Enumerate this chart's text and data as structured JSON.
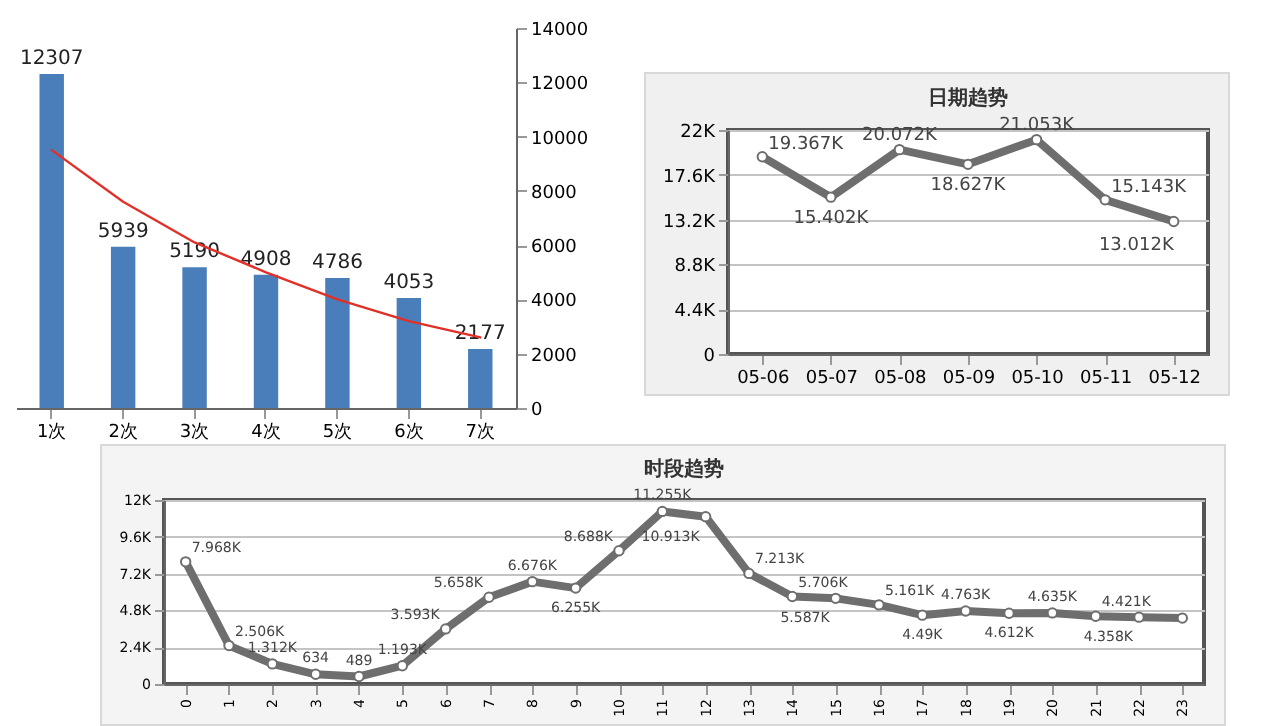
{
  "chart_data": [
    {
      "type": "bar",
      "categories": [
        "1次",
        "2次",
        "3次",
        "4次",
        "5次",
        "6次",
        "7次"
      ],
      "series": [
        {
          "color": "#4a7ebb",
          "values": [
            12307,
            5939,
            5190,
            4908,
            4786,
            4053,
            2177
          ],
          "value_labels": [
            "12307",
            "5939",
            "5190",
            "4908",
            "4786",
            "4053",
            "2177"
          ]
        },
        {
          "type": "line",
          "color": "#e03028",
          "values": [
            9500,
            7600,
            6100,
            5000,
            4000,
            3200,
            2600
          ]
        }
      ],
      "ylim": [
        0,
        14000
      ],
      "yticks": [
        0,
        2000,
        4000,
        6000,
        8000,
        10000,
        12000,
        14000
      ]
    },
    {
      "type": "line",
      "title": "日期趋势",
      "categories": [
        "05-06",
        "05-07",
        "05-08",
        "05-09",
        "05-10",
        "05-11",
        "05-12"
      ],
      "series": [
        {
          "color": "#6e6e6e",
          "values": [
            19367,
            15402,
            20072,
            18627,
            21053,
            15143,
            13012
          ],
          "value_labels": [
            "19.367K",
            "15.402K",
            "20.072K",
            "18.627K",
            "21.053K",
            "15.143K",
            "13.012K"
          ]
        }
      ],
      "ylim": [
        0,
        22000
      ],
      "yticks": [
        0,
        {
          "value": 4400,
          "label": "4.4K"
        },
        {
          "value": 8800,
          "label": "8.8K"
        },
        {
          "value": 13200,
          "label": "13.2K"
        },
        {
          "value": 17600,
          "label": "17.6K"
        },
        {
          "value": 22000,
          "label": "22K"
        }
      ],
      "grid": "y",
      "marker": "circle"
    },
    {
      "type": "line",
      "title": "时段趋势",
      "categories": [
        "0",
        "1",
        "2",
        "3",
        "4",
        "5",
        "6",
        "7",
        "8",
        "9",
        "10",
        "11",
        "12",
        "13",
        "14",
        "15",
        "16",
        "17",
        "18",
        "19",
        "20",
        "21",
        "22",
        "23"
      ],
      "series": [
        {
          "color": "#6e6e6e",
          "values": [
            7968,
            2506,
            1312,
            634,
            489,
            1193,
            3593,
            5658,
            6676,
            6255,
            8688,
            11255,
            10913,
            7213,
            5706,
            5587,
            5161,
            4490,
            4763,
            4612,
            4635,
            4421,
            4358,
            4300
          ],
          "value_labels": [
            "7.968K",
            "2.506K",
            "1.312K",
            "634",
            "489",
            "1.193K",
            "3.593K",
            "5.658K",
            "6.676K",
            "6.255K",
            "8.688K",
            "11.255K",
            "10.913K",
            "7.213K",
            "5.706K",
            "5.587K",
            "5.161K",
            "4.49K",
            "4.763K",
            "4.612K",
            "4.635K",
            "4.421K",
            "4.358K",
            null
          ]
        }
      ],
      "ylim": [
        0,
        12000
      ],
      "yticks": [
        0,
        {
          "value": 2400,
          "label": "2.4K"
        },
        {
          "value": 4800,
          "label": "4.8K"
        },
        {
          "value": 7200,
          "label": "7.2K"
        },
        {
          "value": 9600,
          "label": "9.6K"
        },
        {
          "value": 12000,
          "label": "12K"
        }
      ],
      "grid": "y",
      "marker": "circle"
    }
  ]
}
